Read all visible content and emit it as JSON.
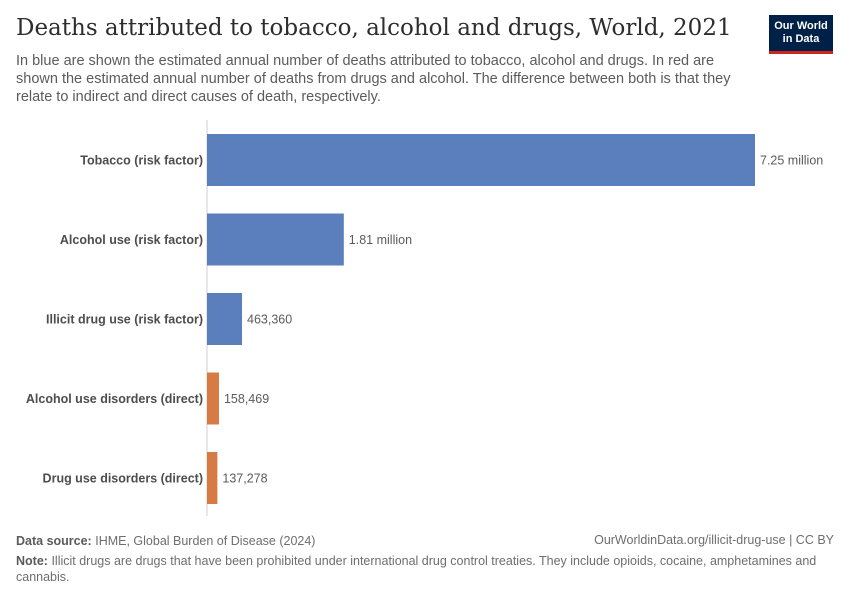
{
  "header": {
    "title": "Deaths attributed to tobacco, alcohol and drugs, World, 2021",
    "subtitle": "In blue are shown the estimated annual number of deaths attributed to tobacco, alcohol and drugs. In red are shown the estimated annual number of deaths from drugs and alcohol. The difference between both is that they relate to indirect and direct causes of death, respectively.",
    "logo_line1": "Our World",
    "logo_line2": "in Data"
  },
  "colors": {
    "risk_factor": "#5b7fbd",
    "direct": "#d77b45",
    "logo_bg": "#002147",
    "logo_accent": "#ce261e"
  },
  "chart_data": {
    "type": "bar",
    "orientation": "horizontal",
    "title": "Deaths attributed to tobacco, alcohol and drugs, World, 2021",
    "categories": [
      "Tobacco (risk factor)",
      "Alcohol use (risk factor)",
      "Illicit drug use (risk factor)",
      "Alcohol use disorders (direct)",
      "Drug use disorders (direct)"
    ],
    "values": [
      7250000,
      1810000,
      463360,
      158469,
      137278
    ],
    "value_labels": [
      "7.25 million",
      "1.81 million",
      "463,360",
      "158,469",
      "137,278"
    ],
    "groups": [
      "risk_factor",
      "risk_factor",
      "risk_factor",
      "direct",
      "direct"
    ],
    "xlim": [
      0,
      7250000
    ],
    "grid": false
  },
  "footer": {
    "source_label": "Data source:",
    "source_text": "IHME, Global Burden of Disease (2024)",
    "link_text": "OurWorldinData.org/illicit-drug-use | CC BY",
    "note_label": "Note:",
    "note_text": "Illicit drugs are drugs that have been prohibited under international drug control treaties. They include opioids, cocaine, amphetamines and cannabis."
  }
}
